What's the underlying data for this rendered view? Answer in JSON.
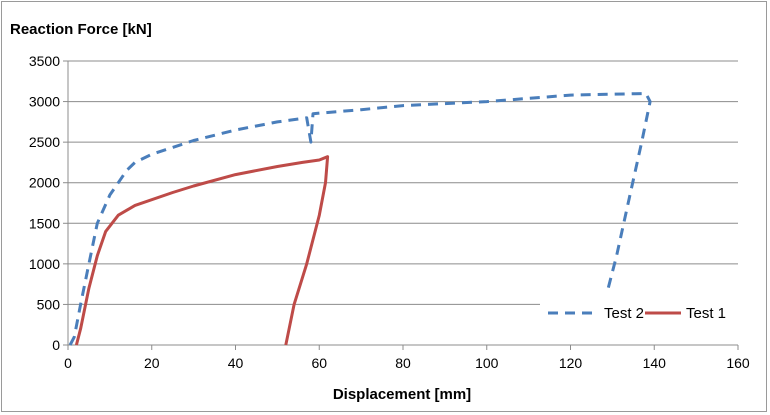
{
  "chart_data": {
    "type": "line",
    "ylabel": "Reaction Force [kN]",
    "xlabel": "Displacement [mm]",
    "xlim": [
      0,
      160
    ],
    "ylim": [
      0,
      3500
    ],
    "x_ticks": [
      0,
      20,
      40,
      60,
      80,
      100,
      120,
      140,
      160
    ],
    "y_ticks": [
      0,
      500,
      1000,
      1500,
      2000,
      2500,
      3000,
      3500
    ],
    "grid": "horizontal",
    "legend_position": "bottom-right",
    "series": [
      {
        "name": "Test 2",
        "color": "#4a7ebb",
        "style": "dashed",
        "points": [
          [
            0.5,
            0
          ],
          [
            1.5,
            100
          ],
          [
            3,
            500
          ],
          [
            5,
            1000
          ],
          [
            7,
            1500
          ],
          [
            10,
            1850
          ],
          [
            12,
            2000
          ],
          [
            14,
            2150
          ],
          [
            16,
            2250
          ],
          [
            20,
            2350
          ],
          [
            30,
            2520
          ],
          [
            40,
            2650
          ],
          [
            50,
            2750
          ],
          [
            57,
            2800
          ],
          [
            58,
            2500
          ],
          [
            58.5,
            2850
          ],
          [
            70,
            2900
          ],
          [
            80,
            2950
          ],
          [
            100,
            3000
          ],
          [
            120,
            3080
          ],
          [
            138,
            3100
          ],
          [
            139,
            3000
          ],
          [
            137,
            2500
          ],
          [
            134,
            1800
          ],
          [
            131,
            1100
          ],
          [
            129,
            700
          ]
        ]
      },
      {
        "name": "Test 1",
        "color": "#be4b48",
        "style": "solid",
        "points": [
          [
            2,
            0
          ],
          [
            3,
            200
          ],
          [
            5,
            700
          ],
          [
            7,
            1100
          ],
          [
            9,
            1400
          ],
          [
            12,
            1600
          ],
          [
            16,
            1720
          ],
          [
            25,
            1880
          ],
          [
            30,
            1960
          ],
          [
            40,
            2100
          ],
          [
            50,
            2200
          ],
          [
            56,
            2250
          ],
          [
            60,
            2280
          ],
          [
            62,
            2320
          ],
          [
            61.5,
            2000
          ],
          [
            60,
            1600
          ],
          [
            57,
            1000
          ],
          [
            54,
            500
          ],
          [
            52,
            0
          ]
        ]
      }
    ]
  }
}
